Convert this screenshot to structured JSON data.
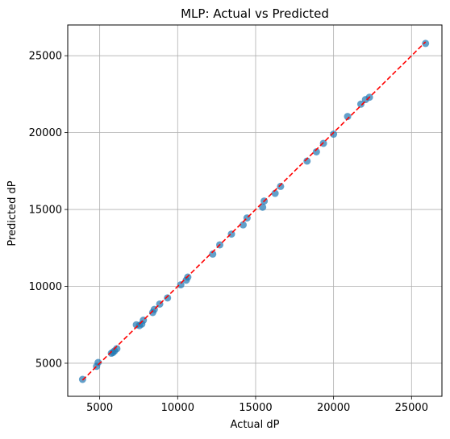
{
  "chart_data": {
    "type": "scatter",
    "title": "MLP: Actual vs Predicted",
    "xlabel": "Actual dP",
    "ylabel": "Predicted dP",
    "xlim": [
      2950,
      26950
    ],
    "ylim": [
      2850,
      27000
    ],
    "xticks": [
      5000,
      10000,
      15000,
      20000,
      25000
    ],
    "yticks": [
      5000,
      10000,
      15000,
      20000,
      25000
    ],
    "xtick_labels": [
      "5000",
      "10000",
      "15000",
      "20000",
      "25000"
    ],
    "ytick_labels": [
      "5000",
      "10000",
      "15000",
      "20000",
      "25000"
    ],
    "grid": true,
    "colors": {
      "points": "#1f77b4",
      "reference_line": "#ff0000",
      "grid": "#b0b0b0",
      "axes": "#000000"
    },
    "series": [
      {
        "values": [
          {
            "x": 3900,
            "y": 3950
          },
          {
            "x": 4800,
            "y": 4800
          },
          {
            "x": 4900,
            "y": 5050
          },
          {
            "x": 5750,
            "y": 5650
          },
          {
            "x": 5850,
            "y": 5700
          },
          {
            "x": 5950,
            "y": 5800
          },
          {
            "x": 6100,
            "y": 5950
          },
          {
            "x": 7350,
            "y": 7500
          },
          {
            "x": 7550,
            "y": 7450
          },
          {
            "x": 7700,
            "y": 7550
          },
          {
            "x": 7800,
            "y": 7800
          },
          {
            "x": 8400,
            "y": 8300
          },
          {
            "x": 8500,
            "y": 8500
          },
          {
            "x": 8850,
            "y": 8850
          },
          {
            "x": 9350,
            "y": 9250
          },
          {
            "x": 10200,
            "y": 10100
          },
          {
            "x": 10550,
            "y": 10400
          },
          {
            "x": 10650,
            "y": 10600
          },
          {
            "x": 12250,
            "y": 12100
          },
          {
            "x": 12700,
            "y": 12700
          },
          {
            "x": 13450,
            "y": 13400
          },
          {
            "x": 14200,
            "y": 14000
          },
          {
            "x": 14450,
            "y": 14450
          },
          {
            "x": 15450,
            "y": 15150
          },
          {
            "x": 15550,
            "y": 15550
          },
          {
            "x": 16250,
            "y": 16050
          },
          {
            "x": 16600,
            "y": 16500
          },
          {
            "x": 18300,
            "y": 18150
          },
          {
            "x": 18900,
            "y": 18750
          },
          {
            "x": 19350,
            "y": 19300
          },
          {
            "x": 20000,
            "y": 19900
          },
          {
            "x": 20900,
            "y": 21050
          },
          {
            "x": 21750,
            "y": 21850
          },
          {
            "x": 22050,
            "y": 22150
          },
          {
            "x": 22300,
            "y": 22300
          },
          {
            "x": 25900,
            "y": 25800
          }
        ]
      }
    ],
    "reference_line": {
      "x": [
        3900,
        25900
      ],
      "y": [
        3900,
        25900
      ]
    }
  }
}
